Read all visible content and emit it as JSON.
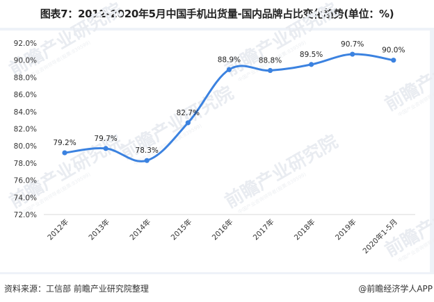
{
  "title": "图表7：2012-2020年5月中国手机出货量-国内品牌占比变化趋势(单位：%)",
  "footer": {
    "source": "资料来源：工信部 前瞻产业研究院整理",
    "credit": "@前瞻经济学人APP"
  },
  "watermark": {
    "text": "前瞻产业研究院",
    "subtext": "中国产业咨询领导者(股票:839599)"
  },
  "colors": {
    "line": "#3b82e0",
    "grid": "#d9d9d9",
    "panel_border": "#eef2f8",
    "text": "#333333"
  },
  "chart_data": {
    "type": "line",
    "title": "图表7：2012-2020年5月中国手机出货量-国内品牌占比变化趋势(单位：%)",
    "xlabel": "",
    "ylabel": "",
    "categories": [
      "2012年",
      "2013年",
      "2014年",
      "2015年",
      "2016年",
      "2017年",
      "2018年",
      "2019年",
      "2020年1-5月"
    ],
    "series": [
      {
        "name": "国内品牌占比",
        "values": [
          79.2,
          79.7,
          78.3,
          82.7,
          88.9,
          88.8,
          89.5,
          90.7,
          90.0
        ],
        "labels": [
          "79.2%",
          "79.7%",
          "78.3%",
          "82.7%",
          "88.9%",
          "88.8%",
          "89.5%",
          "90.7%",
          "90.0%"
        ]
      }
    ],
    "ylim": [
      72.0,
      92.0
    ],
    "yticks": [
      "92.0%",
      "90.0%",
      "88.0%",
      "86.0%",
      "84.0%",
      "82.0%",
      "80.0%",
      "78.0%",
      "76.0%",
      "74.0%",
      "72.0%"
    ],
    "ytick_values": [
      92,
      90,
      88,
      86,
      84,
      82,
      80,
      78,
      76,
      74,
      72
    ],
    "grid": false,
    "legend": "none",
    "smooth": true,
    "markers": true,
    "x_label_rotation": -45
  }
}
